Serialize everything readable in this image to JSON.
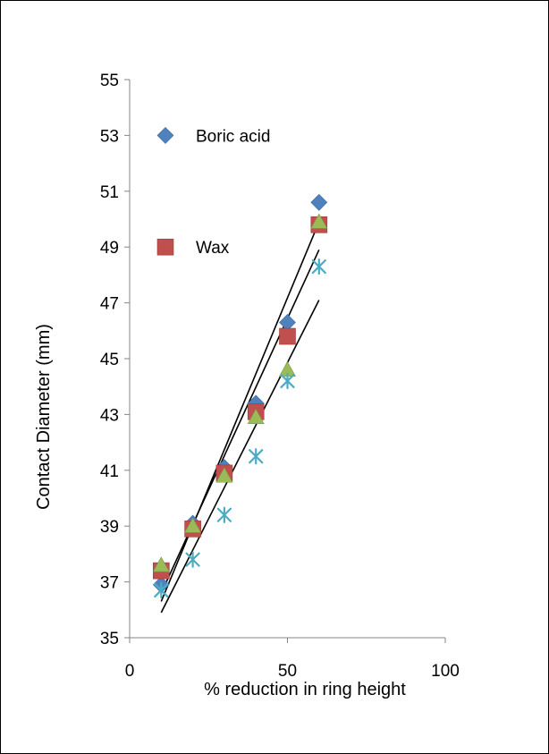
{
  "chart_data": {
    "type": "scatter",
    "xlabel": "% reduction in ring height",
    "ylabel": "Contact  Diameter (mm)",
    "xlim": [
      0,
      100
    ],
    "ylim": [
      35,
      55
    ],
    "x_ticks": [
      "0",
      "50",
      "100"
    ],
    "y_ticks": [
      "35",
      "37",
      "39",
      "41",
      "43",
      "45",
      "47",
      "49",
      "51",
      "53",
      "55"
    ],
    "grid": false,
    "legend_position": "top-left inside",
    "legend": [
      "Boric acid",
      "Wax"
    ],
    "series": [
      {
        "name": "Boric acid",
        "marker": "diamond",
        "color": "#4F81BD",
        "x": [
          10,
          20,
          30,
          40,
          50,
          60
        ],
        "y": [
          36.9,
          39.1,
          41.1,
          43.4,
          46.3,
          50.6
        ]
      },
      {
        "name": "Wax",
        "marker": "square",
        "color": "#C0504D",
        "x": [
          10,
          20,
          30,
          40,
          50,
          60
        ],
        "y": [
          37.4,
          38.9,
          40.9,
          43.1,
          45.8,
          49.8
        ]
      },
      {
        "marker": "triangle",
        "color": "#9BBB59",
        "x": [
          10,
          20,
          30,
          40,
          50,
          60
        ],
        "y": [
          37.6,
          39.0,
          40.8,
          42.9,
          44.6,
          49.9
        ]
      },
      {
        "marker": "star",
        "color": "#4BACC6",
        "x": [
          10,
          20,
          30,
          40,
          50,
          60
        ],
        "y": [
          36.7,
          37.8,
          39.4,
          41.5,
          44.2,
          48.3
        ]
      }
    ],
    "trendlines": [
      {
        "x": [
          10,
          60
        ],
        "y": [
          36.3,
          49.9
        ]
      },
      {
        "x": [
          10,
          60
        ],
        "y": [
          36.6,
          48.9
        ]
      },
      {
        "x": [
          10,
          60
        ],
        "y": [
          35.9,
          47.1
        ]
      }
    ]
  }
}
